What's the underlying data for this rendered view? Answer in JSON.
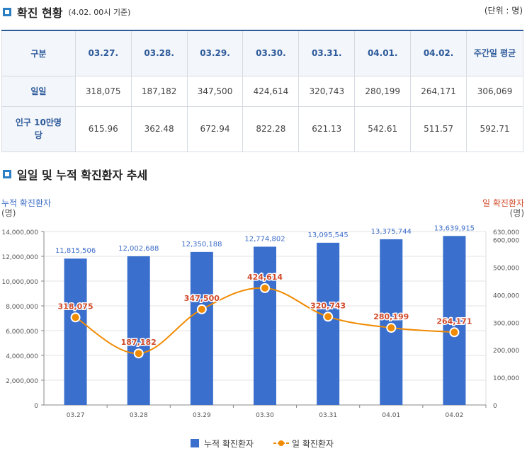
{
  "section1": {
    "title": "확진 현황",
    "subtitle": "(4.02. 00시 기준)",
    "unit": "(단위 : 명)"
  },
  "table": {
    "headers": [
      "구분",
      "03.27.",
      "03.28.",
      "03.29.",
      "03.30.",
      "03.31.",
      "04.01.",
      "04.02.",
      "주간일 평균"
    ],
    "rows": [
      {
        "label": "일일",
        "values": [
          "318,075",
          "187,182",
          "347,500",
          "424,614",
          "320,743",
          "280,199",
          "264,171",
          "306,069"
        ]
      },
      {
        "label": "인구 10만명당",
        "values": [
          "615.96",
          "362.48",
          "672.94",
          "822.28",
          "621.13",
          "542.61",
          "511.57",
          "592.71"
        ]
      }
    ]
  },
  "section2": {
    "title": "일일 및 누적 확진환자 추세"
  },
  "chart_data": {
    "type": "bar",
    "categories": [
      "03.27",
      "03.28",
      "03.29",
      "03.30",
      "03.31",
      "04.01",
      "04.02"
    ],
    "series": [
      {
        "name": "누적 확진환자",
        "type": "bar",
        "axis": "left",
        "color": "#3a6fcd",
        "values": [
          11815506,
          12002688,
          12350188,
          12774802,
          13095545,
          13375744,
          13639915
        ],
        "labels": [
          "11,815,506",
          "12,002,688",
          "12,350,188",
          "12,774,802",
          "13,095,545",
          "13,375,744",
          "13,639,915"
        ]
      },
      {
        "name": "일 확진환자",
        "type": "line",
        "axis": "right",
        "color": "#f08a00",
        "values": [
          318075,
          187182,
          347500,
          424614,
          320743,
          280199,
          264171
        ],
        "labels": [
          "318,075",
          "187,182",
          "347,500",
          "424,614",
          "320,743",
          "280,199",
          "264,171"
        ]
      }
    ],
    "ylabel_left": "누적 확진환자\n(명)",
    "ylabel_right": "일 확진환자\n(명)",
    "ylim_left": [
      0,
      14000000
    ],
    "ylim_right": [
      0,
      630000
    ],
    "yticks_left": [
      "0",
      "2,000,000",
      "4,000,000",
      "6,000,000",
      "8,000,000",
      "10,000,000",
      "12,000,000",
      "14,000,000"
    ],
    "yticks_right": [
      "0",
      "100,000",
      "200,000",
      "300,000",
      "400,000",
      "500,000",
      "600,000",
      "630,000"
    ],
    "grid": true,
    "legend": "bottom",
    "label_color_line": "#d04a2a"
  }
}
